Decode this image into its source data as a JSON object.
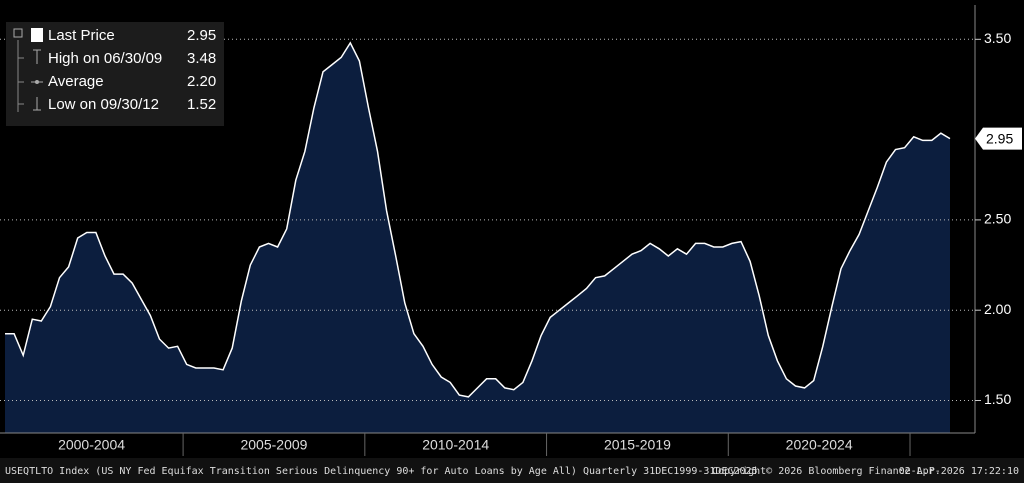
{
  "chart_data": {
    "type": "area",
    "series": [
      {
        "name": "Last Price",
        "color": "#ffffff",
        "fill": "#0c1e3e",
        "values": [
          1.87,
          1.87,
          1.75,
          1.95,
          1.94,
          2.02,
          2.18,
          2.24,
          2.4,
          2.43,
          2.43,
          2.3,
          2.2,
          2.2,
          2.15,
          2.06,
          1.97,
          1.84,
          1.79,
          1.8,
          1.7,
          1.68,
          1.68,
          1.68,
          1.67,
          1.79,
          2.05,
          2.25,
          2.35,
          2.37,
          2.35,
          2.45,
          2.72,
          2.88,
          3.12,
          3.32,
          3.36,
          3.4,
          3.48,
          3.38,
          3.12,
          2.88,
          2.55,
          2.3,
          2.04,
          1.87,
          1.8,
          1.7,
          1.63,
          1.6,
          1.53,
          1.52,
          1.57,
          1.62,
          1.62,
          1.57,
          1.56,
          1.6,
          1.72,
          1.86,
          1.96,
          2.0,
          2.04,
          2.08,
          2.12,
          2.18,
          2.19,
          2.23,
          2.27,
          2.31,
          2.33,
          2.37,
          2.34,
          2.3,
          2.34,
          2.31,
          2.37,
          2.37,
          2.35,
          2.35,
          2.37,
          2.38,
          2.27,
          2.08,
          1.86,
          1.72,
          1.62,
          1.58,
          1.57,
          1.61,
          1.8,
          2.02,
          2.23,
          2.33,
          2.42,
          2.55,
          2.68,
          2.82,
          2.89,
          2.9,
          2.96,
          2.94,
          2.94,
          2.98,
          2.95
        ]
      }
    ],
    "x_labels": [
      "2000-2004",
      "2005-2009",
      "2010-2014",
      "2015-2019",
      "2020-2024"
    ],
    "ylim": [
      1.32,
      3.69
    ],
    "yticks": [
      {
        "value": 1.5,
        "label": "1.50"
      },
      {
        "value": 2,
        "label": "2.00"
      },
      {
        "value": 2.5,
        "label": "2.50"
      },
      {
        "value": 3.5,
        "label": "3.50"
      }
    ],
    "grid": true,
    "stats": {
      "labels": [
        "Last Price",
        "High on 06/30/09",
        "Average",
        "Low on 09/30/12"
      ],
      "value_labels": [
        "2.95",
        "3.48",
        "2.20",
        "1.52"
      ]
    },
    "footer": {
      "description": "USEQTLTO Index (US NY Fed Equifax Transition Serious Delinquency 90+ for Auto Loans by Age All) Quarterly 31DEC1999-31DEC2025",
      "copyright": "Copyright© 2026 Bloomberg Finance L.P.",
      "timestamp": "02-Apr-2026 17:22:10"
    }
  }
}
